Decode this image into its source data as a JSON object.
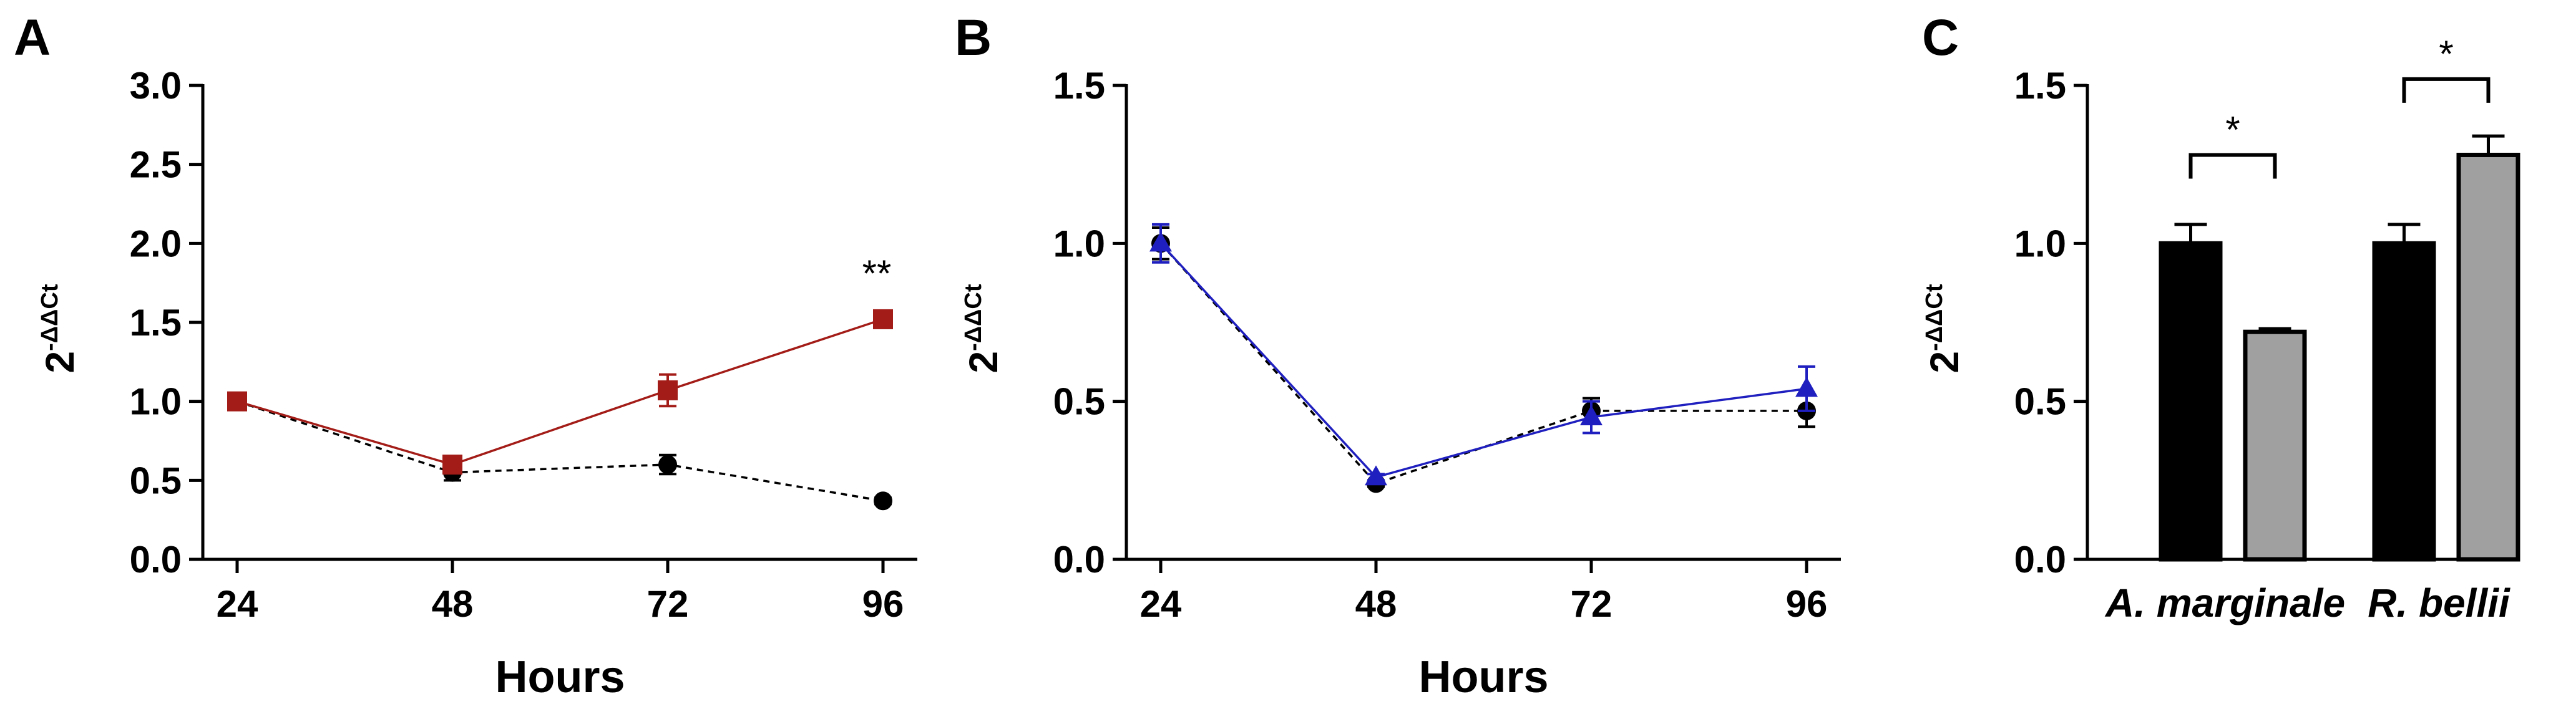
{
  "panels": [
    {
      "letter": "A",
      "chart_data": {
        "type": "line",
        "title": "",
        "xlabel": "Hours",
        "ylabel": "2-ΔΔCt",
        "ylabel_parts": {
          "base": "2",
          "superscript": "-ΔΔCt"
        },
        "x": [
          24,
          48,
          72,
          96
        ],
        "x_tick_labels": [
          "24",
          "48",
          "72",
          "96"
        ],
        "ylim": [
          0,
          3
        ],
        "y_ticks": [
          0,
          0.5,
          1,
          1.5,
          2,
          2.5,
          3
        ],
        "y_tick_labels": [
          "0.0",
          "0.5",
          "1.0",
          "1.5",
          "2.0",
          "2.5",
          "3.0"
        ],
        "grid": false,
        "series": [
          {
            "color": "#000000",
            "marker": "circle",
            "line_style": "dashed",
            "values": [
              1.0,
              0.55,
              0.6,
              0.37
            ],
            "errors": [
              0.03,
              0.05,
              0.06,
              0.02
            ]
          },
          {
            "color": "#A31C17",
            "marker": "square",
            "line_style": "solid",
            "values": [
              1.0,
              0.6,
              1.07,
              1.52
            ],
            "errors": [
              0.03,
              0.04,
              0.1,
              0.03
            ]
          }
        ],
        "annotations": [
          {
            "text": "**",
            "x": 96,
            "y": 1.8
          }
        ]
      }
    },
    {
      "letter": "B",
      "chart_data": {
        "type": "line",
        "title": "",
        "xlabel": "Hours",
        "ylabel": "2-ΔΔCt",
        "ylabel_parts": {
          "base": "2",
          "superscript": "-ΔΔCt"
        },
        "x": [
          24,
          48,
          72,
          96
        ],
        "x_tick_labels": [
          "24",
          "48",
          "72",
          "96"
        ],
        "ylim": [
          0,
          1.5
        ],
        "y_ticks": [
          0,
          0.5,
          1,
          1.5
        ],
        "y_tick_labels": [
          "0.0",
          "0.5",
          "1.0",
          "1.5"
        ],
        "grid": false,
        "series": [
          {
            "color": "#000000",
            "marker": "circle",
            "line_style": "dashed",
            "values": [
              1.0,
              0.24,
              0.47,
              0.47
            ],
            "errors": [
              0.05,
              0.01,
              0.04,
              0.05
            ]
          },
          {
            "color": "#1F1FBF",
            "marker": "triangle",
            "line_style": "solid",
            "values": [
              1.0,
              0.26,
              0.45,
              0.54
            ],
            "errors": [
              0.06,
              0.01,
              0.05,
              0.07
            ]
          }
        ],
        "annotations": []
      }
    },
    {
      "letter": "C",
      "chart_data": {
        "type": "bar",
        "title": "",
        "xlabel": "",
        "ylabel": "2-ΔΔCt",
        "ylabel_parts": {
          "base": "2",
          "superscript": "-ΔΔCt"
        },
        "categories": [
          "A. marginale",
          "R. bellii"
        ],
        "ylim": [
          0,
          1.5
        ],
        "y_ticks": [
          0,
          0.5,
          1,
          1.5
        ],
        "y_tick_labels": [
          "0.0",
          "0.5",
          "1.0",
          "1.5"
        ],
        "grid": false,
        "series": [
          {
            "color": "#000000",
            "values": [
              1.0,
              1.0
            ],
            "errors": [
              0.06,
              0.06
            ]
          },
          {
            "color": "#A0A0A0",
            "values": [
              0.72,
              1.28
            ],
            "errors": [
              0.01,
              0.06
            ]
          }
        ],
        "annotations": [
          {
            "text": "*",
            "category": "A. marginale",
            "bracket_y": 1.28
          },
          {
            "text": "*",
            "category": "R. bellii",
            "bracket_y": 1.52
          }
        ]
      }
    }
  ]
}
